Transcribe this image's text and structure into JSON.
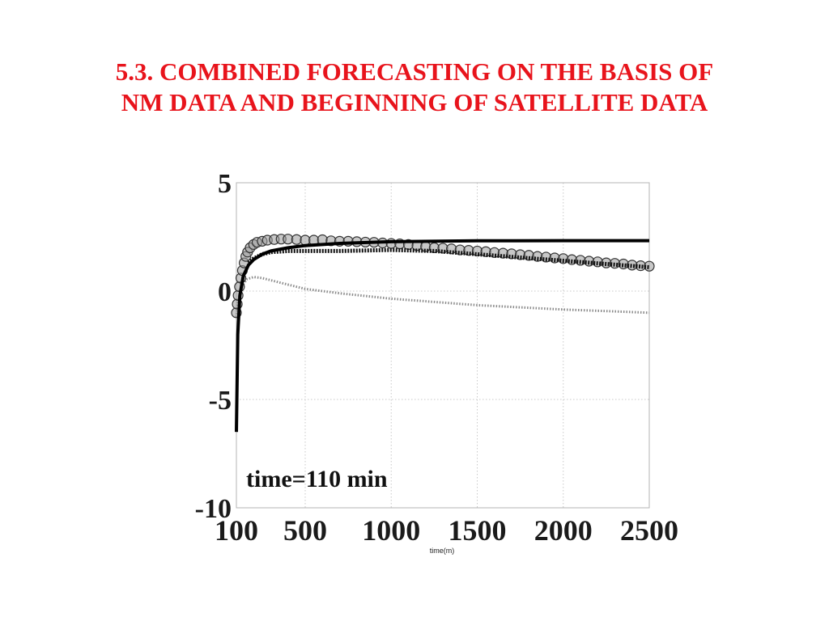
{
  "slide": {
    "title_line1": "5.3. COMBINED FORECASTING ON THE BASIS OF",
    "title_line2": "NM DATA AND BEGINNING OF SATELLITE DATA",
    "title_color": "#e8141c"
  },
  "chart_data": {
    "type": "line",
    "title": "",
    "xlabel": "time(m)",
    "ylabel": "",
    "xlim": [
      100,
      2500
    ],
    "ylim": [
      -10,
      5
    ],
    "x_ticks": [
      100,
      500,
      1000,
      1500,
      2000,
      2500
    ],
    "y_ticks": [
      5,
      0,
      -5,
      -10
    ],
    "grid": true,
    "legend": "none",
    "annotation": "time=110 min",
    "series": [
      {
        "style": "solid-black-thick",
        "color": "#000000",
        "x": [
          100,
          108,
          120,
          140,
          170,
          200,
          250,
          300,
          400,
          500,
          700,
          1000,
          1500,
          2000,
          2500
        ],
        "y": [
          -6.5,
          -2.0,
          -0.2,
          0.7,
          1.2,
          1.45,
          1.7,
          1.85,
          2.0,
          2.1,
          2.2,
          2.28,
          2.32,
          2.33,
          2.33
        ]
      },
      {
        "style": "dotted-black-thick",
        "color": "#111111",
        "x": [
          170,
          200,
          250,
          300,
          400,
          500,
          700,
          1000,
          1250,
          1500,
          1750,
          2000,
          2250,
          2500
        ],
        "y": [
          1.3,
          1.5,
          1.7,
          1.8,
          1.85,
          1.85,
          1.85,
          1.9,
          1.85,
          1.7,
          1.55,
          1.4,
          1.25,
          1.1
        ]
      },
      {
        "style": "dotted-gray",
        "color": "#8a8a8a",
        "x": [
          100,
          110,
          130,
          160,
          200,
          250,
          300,
          400,
          500,
          700,
          1000,
          1250,
          1500,
          1750,
          2000,
          2250,
          2500
        ],
        "y": [
          -1.2,
          -0.5,
          0.2,
          0.55,
          0.65,
          0.6,
          0.5,
          0.3,
          0.1,
          -0.1,
          -0.35,
          -0.5,
          -0.65,
          -0.75,
          -0.85,
          -0.92,
          -1.0
        ]
      },
      {
        "style": "circle-markers",
        "color": "#333333",
        "x": [
          100,
          105,
          110,
          118,
          126,
          135,
          145,
          155,
          165,
          180,
          200,
          220,
          250,
          280,
          320,
          360,
          400,
          450,
          500,
          550,
          600,
          650,
          700,
          750,
          800,
          850,
          900,
          950,
          1000,
          1050,
          1100,
          1150,
          1200,
          1250,
          1300,
          1350,
          1400,
          1450,
          1500,
          1550,
          1600,
          1650,
          1700,
          1750,
          1800,
          1850,
          1900,
          1950,
          2000,
          2050,
          2100,
          2150,
          2200,
          2250,
          2300,
          2350,
          2400,
          2450,
          2500
        ],
        "y": [
          -1.0,
          -0.6,
          -0.2,
          0.2,
          0.6,
          0.95,
          1.3,
          1.6,
          1.8,
          2.0,
          2.15,
          2.25,
          2.3,
          2.35,
          2.38,
          2.4,
          2.4,
          2.38,
          2.35,
          2.35,
          2.37,
          2.32,
          2.3,
          2.3,
          2.28,
          2.26,
          2.25,
          2.22,
          2.2,
          2.18,
          2.15,
          2.1,
          2.05,
          2.0,
          1.98,
          1.95,
          1.9,
          1.88,
          1.85,
          1.82,
          1.78,
          1.75,
          1.72,
          1.68,
          1.65,
          1.6,
          1.57,
          1.53,
          1.5,
          1.45,
          1.42,
          1.38,
          1.35,
          1.3,
          1.28,
          1.25,
          1.2,
          1.17,
          1.15
        ]
      }
    ]
  }
}
